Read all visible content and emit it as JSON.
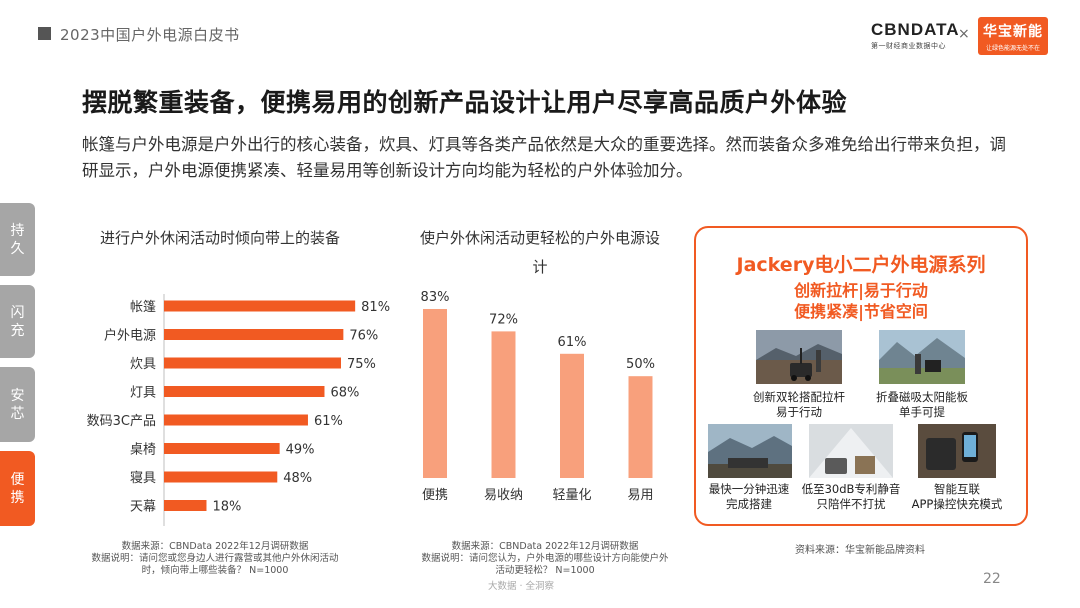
{
  "header": {
    "report_title": "2023中国户外电源白皮书",
    "cbn_logo": "CBNDATA",
    "cbn_tagline": "第一财经商业数据中心",
    "times": "×",
    "partner_logo": "华宝新能",
    "partner_tagline": "让绿色能源无处不在"
  },
  "headline": "摆脱繁重装备，便携易用的创新产品设计让用户尽享高品质户外体验",
  "intro": "帐篷与户外电源是户外出行的核心装备，炊具、灯具等各类产品依然是大众的重要选择。然而装备众多难免给出行带来负担，调研显示，户外电源便携紧凑、轻量易用等创新设计方向均能为轻松的户外体验加分。",
  "side_tabs": [
    {
      "label": "持久",
      "color": "#a6a6a6"
    },
    {
      "label": "闪充",
      "color": "#a6a6a6"
    },
    {
      "label": "安芯",
      "color": "#a6a6a6"
    },
    {
      "label": "便携",
      "color": "#f15a22"
    }
  ],
  "chart_data": [
    {
      "type": "bar",
      "orientation": "horizontal",
      "title": "进行户外休闲活动时倾向带上的装备",
      "categories": [
        "帐篷",
        "户外电源",
        "炊具",
        "灯具",
        "数码3C产品",
        "桌椅",
        "寝具",
        "天幕"
      ],
      "values": [
        81,
        76,
        75,
        68,
        61,
        49,
        48,
        18
      ],
      "value_labels": [
        "81%",
        "76%",
        "75%",
        "68%",
        "61%",
        "49%",
        "48%",
        "18%"
      ],
      "unit": "%",
      "xlim": [
        0,
        100
      ],
      "color": "#f15a22",
      "source": "数据来源：CBNData 2022年12月调研数据",
      "note_line1": "数据说明：请问您或您身边人进行露营或其他户外休闲活动",
      "note_line2": "时，倾向带上哪些装备？ N=1000"
    },
    {
      "type": "bar",
      "orientation": "vertical",
      "title": "使户外休闲活动更轻松的户外电源设计",
      "categories": [
        "便携",
        "易收纳",
        "轻量化",
        "易用"
      ],
      "values": [
        83,
        72,
        61,
        50
      ],
      "value_labels": [
        "83%",
        "72%",
        "61%",
        "50%"
      ],
      "unit": "%",
      "ylim": [
        0,
        100
      ],
      "color": "#f8a07c",
      "source": "数据来源：CBNData 2022年12月调研数据",
      "note_line1": "数据说明：请问您认为，户外电源的哪些设计方向能使户外",
      "note_line2": "活动更轻松？ N=1000"
    }
  ],
  "product_card": {
    "title": "Jackery电小二户外电源系列",
    "subtitle_line1": "创新拉杆|易于行动",
    "subtitle_line2": "便携紧凑|节省空间",
    "features": [
      {
        "line1": "创新双轮搭配拉杆",
        "line2": "易于行动"
      },
      {
        "line1": "折叠磁吸太阳能板",
        "line2": "单手可提"
      },
      {
        "line1": "最快一分钟迅速",
        "line2": "完成搭建"
      },
      {
        "line1": "低至30dB专利静音",
        "line2": "只陪伴不打扰"
      },
      {
        "line1": "智能互联",
        "line2": "APP操控快充模式"
      }
    ],
    "source": "资料来源：华宝新能品牌资料"
  },
  "footer": {
    "mark": "大数据 · 全洞察",
    "page": "22"
  }
}
